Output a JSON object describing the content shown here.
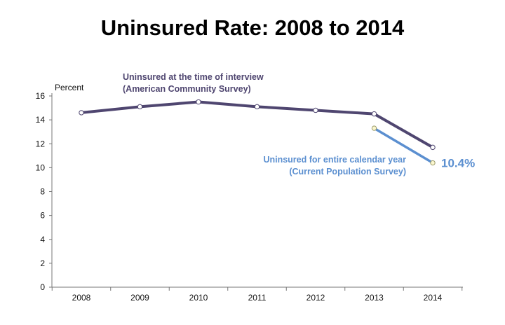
{
  "chart_data": {
    "type": "line",
    "title": "Uninsured Rate: 2008 to 2014",
    "ylabel": "Percent",
    "xlabel": "",
    "ylim": [
      0,
      16
    ],
    "yticks": [
      0,
      2,
      4,
      6,
      8,
      10,
      12,
      14,
      16
    ],
    "categories": [
      "2008",
      "2009",
      "2010",
      "2011",
      "2012",
      "2013",
      "2014"
    ],
    "grid": false,
    "series": [
      {
        "name": "Uninsured at the time of interview (American Community Survey)",
        "label_lines": [
          "Uninsured at the time of interview",
          "(American Community Survey)"
        ],
        "color": "#4f4670",
        "x": [
          "2008",
          "2009",
          "2010",
          "2011",
          "2012",
          "2013",
          "2014"
        ],
        "values": [
          14.6,
          15.1,
          15.5,
          15.1,
          14.8,
          14.5,
          11.7
        ]
      },
      {
        "name": "Uninsured for entire calendar year (Current Population Survey)",
        "label_lines": [
          "Uninsured for entire calendar year",
          "(Current Population Survey)"
        ],
        "color": "#5b8fd0",
        "x": [
          "2013",
          "2014"
        ],
        "values": [
          13.3,
          10.4
        ],
        "end_label": "10.4%"
      }
    ]
  }
}
